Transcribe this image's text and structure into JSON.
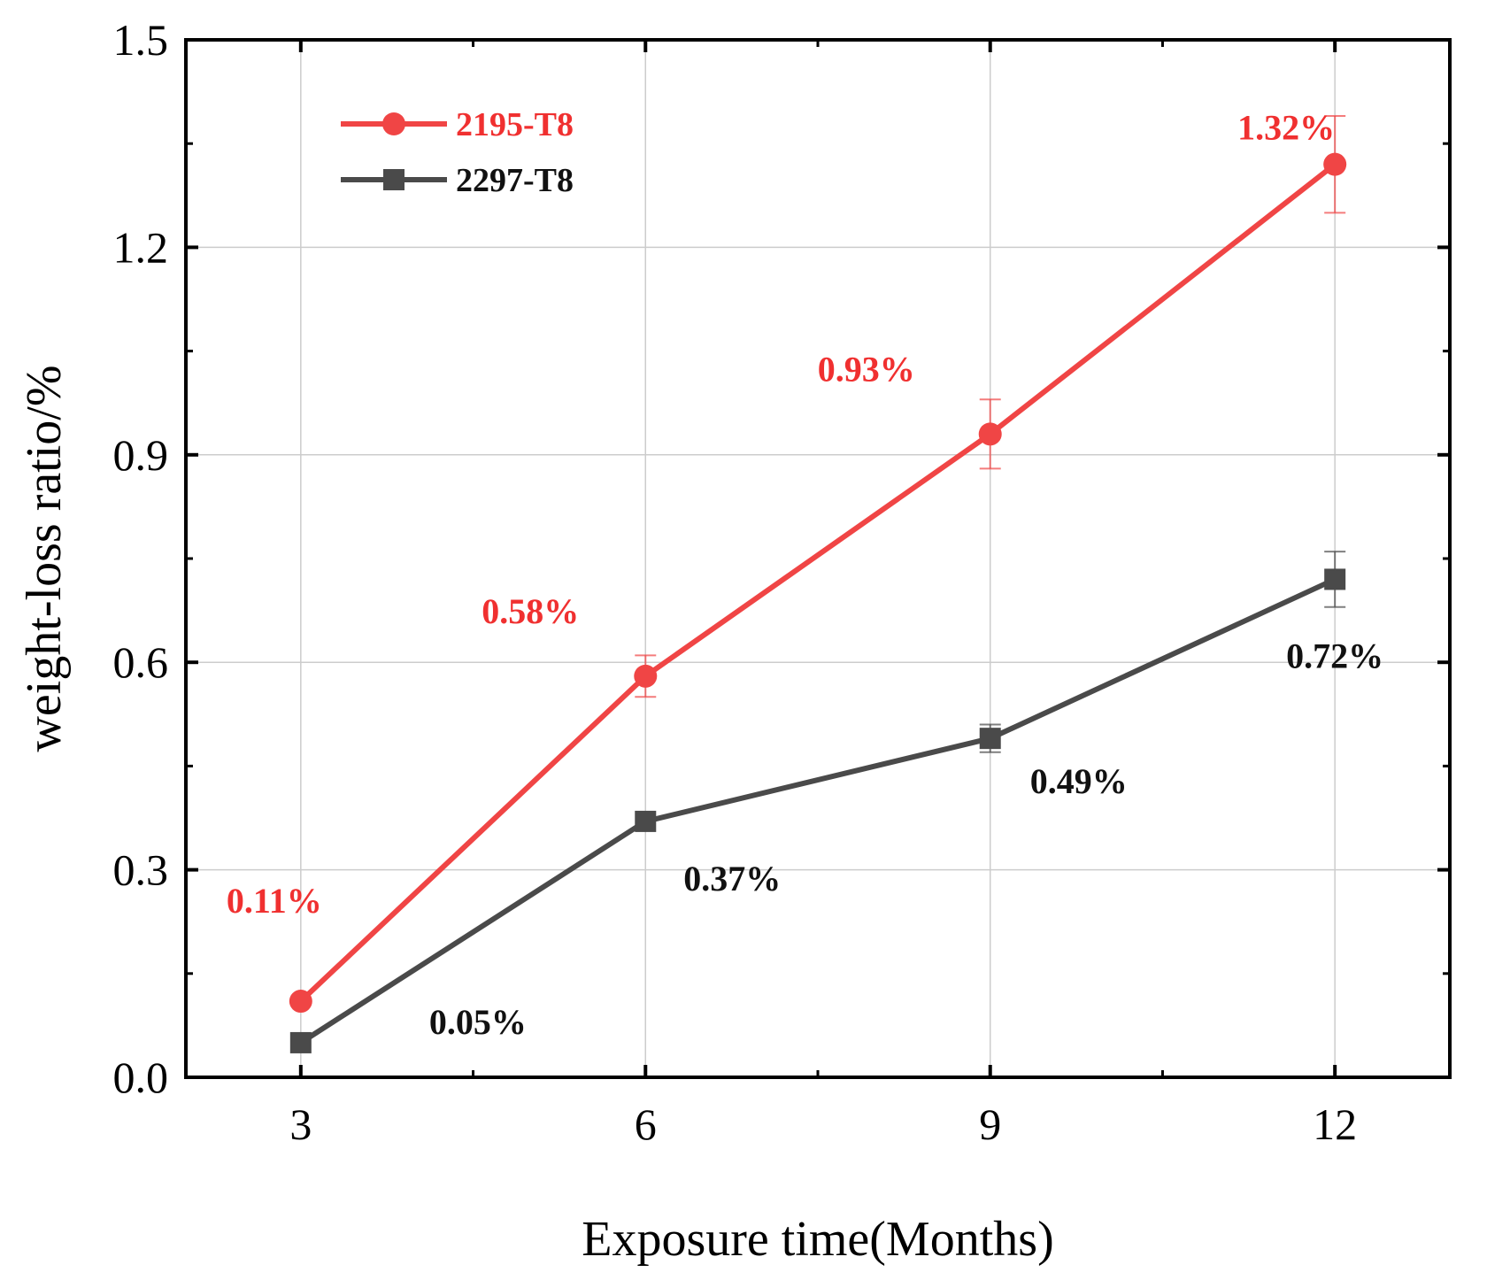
{
  "chart_data": {
    "type": "line",
    "xlabel": "Exposure time(Months)",
    "ylabel": "weight-loss ratio/%",
    "x": [
      3,
      6,
      9,
      12
    ],
    "xlim": [
      2,
      13
    ],
    "ylim": [
      0,
      1.5
    ],
    "xticks": [
      "3",
      "6",
      "9",
      "12"
    ],
    "yticks": [
      "0.0",
      "0.3",
      "0.6",
      "0.9",
      "1.2",
      "1.5"
    ],
    "grid": true,
    "legend_position": "top-left",
    "series": [
      {
        "name": "2195-T8",
        "color": "#f04545",
        "marker": "circle",
        "values": [
          0.11,
          0.58,
          0.93,
          1.32
        ],
        "errors": [
          0.0,
          0.03,
          0.05,
          0.07
        ],
        "labels": [
          "0.11%",
          "0.58%",
          "0.93%",
          "1.32%"
        ]
      },
      {
        "name": "2297-T8",
        "color": "#4a4a4a",
        "marker": "square",
        "values": [
          0.05,
          0.37,
          0.49,
          0.72
        ],
        "errors": [
          0.0,
          0.0,
          0.02,
          0.04
        ],
        "labels": [
          "0.05%",
          "0.37%",
          "0.49%",
          "0.72%"
        ]
      }
    ]
  }
}
